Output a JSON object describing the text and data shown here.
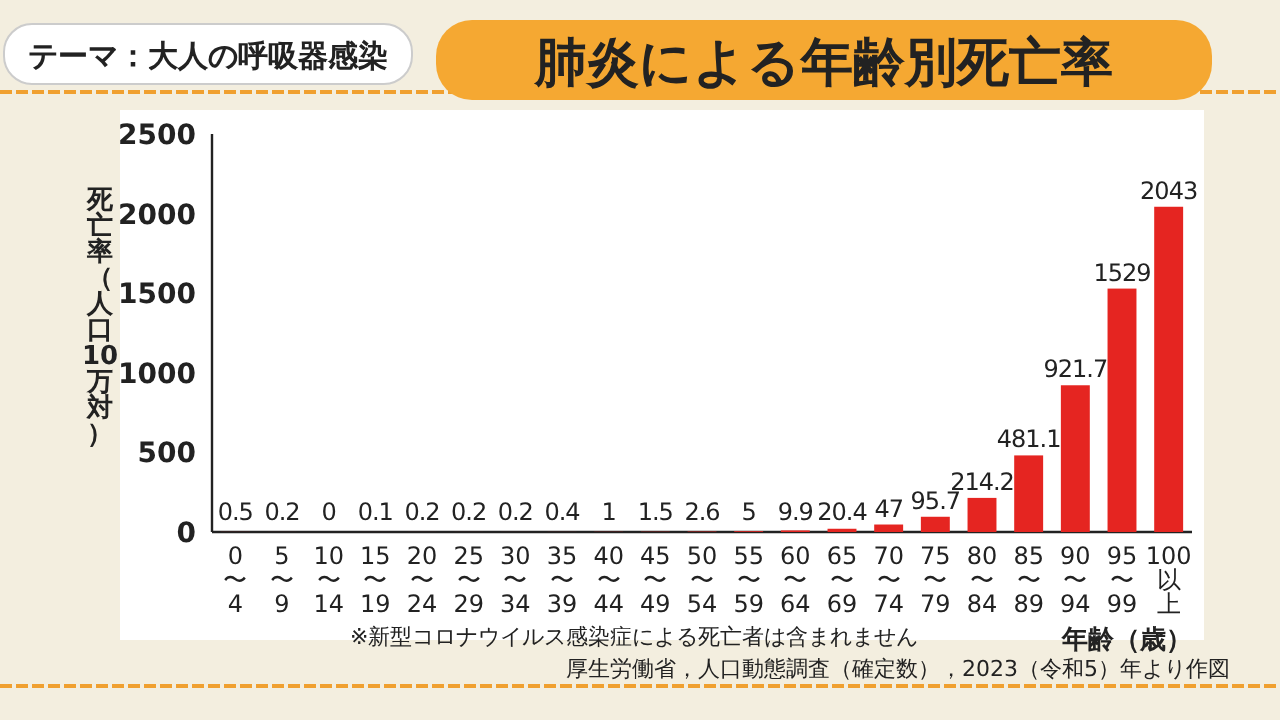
{
  "chart_data": {
    "type": "bar",
    "title": "肺炎による年齢別死亡率",
    "subtitle": "テーマ：大人の呼吸器感染",
    "ylabel": "死亡率（人口10万対）",
    "xlabel": "年齢（歳）",
    "categories": [
      "0〜4",
      "5〜9",
      "10〜14",
      "15〜19",
      "20〜24",
      "25〜29",
      "30〜34",
      "35〜39",
      "40〜44",
      "45〜49",
      "50〜54",
      "55〜59",
      "60〜64",
      "65〜69",
      "70〜74",
      "75〜79",
      "80〜84",
      "85〜89",
      "90〜94",
      "95〜99",
      "100以上"
    ],
    "values": [
      0.5,
      0.2,
      0,
      0.1,
      0.2,
      0.2,
      0.2,
      0.4,
      1,
      1.5,
      2.6,
      5,
      9.9,
      20.4,
      47,
      95.7,
      214.2,
      481.1,
      921.7,
      1529,
      2043
    ],
    "color": "#e52521",
    "ylim": [
      0,
      2500
    ],
    "yticks": [
      0,
      500,
      1000,
      1500,
      2000,
      2500
    ],
    "data_labels": true,
    "grid": false,
    "annotations": [
      "※新型コロナウイルス感染症による死亡者は含まれません",
      "厚生労働省，人口動態調査（確定数），2023（令和5）年より作図"
    ]
  }
}
